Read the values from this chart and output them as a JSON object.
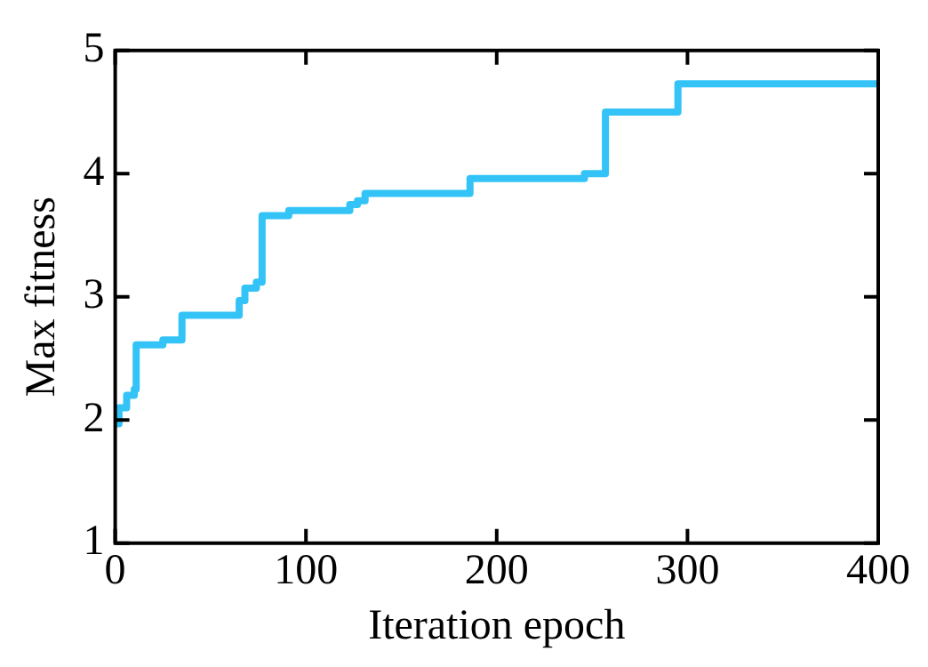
{
  "chart_data": {
    "type": "step",
    "xlabel": "Iteration epoch",
    "ylabel": "Max fitness",
    "xlim": [
      0,
      400
    ],
    "xticks": [
      0,
      100,
      200,
      300,
      400
    ],
    "ylim": [
      1,
      5
    ],
    "yticks": [
      1,
      2,
      3,
      4,
      5
    ],
    "grid": false,
    "legend": false,
    "marker": "none",
    "line_style": "solid",
    "series": [
      {
        "color": "#33c3f7",
        "x": [
          0,
          2,
          6,
          10,
          11,
          25,
          35,
          65,
          68,
          74,
          77,
          91,
          123,
          127,
          131,
          186,
          246,
          257,
          295,
          400
        ],
        "values": [
          1.97,
          2.1,
          2.2,
          2.25,
          2.61,
          2.65,
          2.85,
          2.97,
          3.07,
          3.12,
          3.66,
          3.7,
          3.75,
          3.78,
          3.84,
          3.96,
          4.0,
          4.5,
          4.73,
          4.73
        ]
      }
    ]
  }
}
